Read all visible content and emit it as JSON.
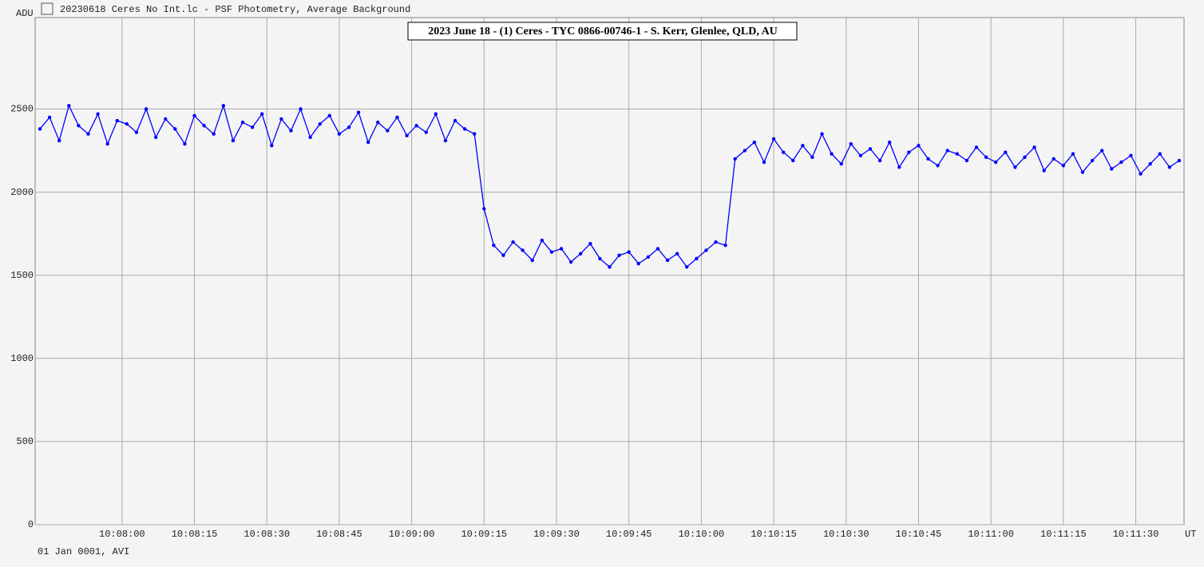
{
  "window_title": "20230618 Ceres No Int.lc - PSF Photometry, Average Background",
  "footer": "01 Jan 0001, AVI",
  "chart_data": {
    "type": "line",
    "title": "2023 June 18 - (1) Ceres - TYC 0866-00746-1 - S. Kerr, Glenlee, QLD, AU",
    "y_label": "ADU",
    "x_label": "UT",
    "grid": true,
    "xlim": [
      "10:07:42",
      "10:11:40"
    ],
    "ylim": [
      0,
      3050
    ],
    "yticks": [
      0,
      500,
      1000,
      1500,
      2000,
      2500
    ],
    "xticks": [
      "10:08:00",
      "10:08:15",
      "10:08:30",
      "10:08:45",
      "10:09:00",
      "10:09:15",
      "10:09:30",
      "10:09:45",
      "10:10:00",
      "10:10:15",
      "10:10:30",
      "10:10:45",
      "10:11:00",
      "10:11:15",
      "10:11:30"
    ],
    "x": [
      "10:07:43",
      "10:07:45",
      "10:07:47",
      "10:07:49",
      "10:07:51",
      "10:07:53",
      "10:07:55",
      "10:07:57",
      "10:07:59",
      "10:08:01",
      "10:08:03",
      "10:08:05",
      "10:08:07",
      "10:08:09",
      "10:08:11",
      "10:08:13",
      "10:08:15",
      "10:08:17",
      "10:08:19",
      "10:08:21",
      "10:08:23",
      "10:08:25",
      "10:08:27",
      "10:08:29",
      "10:08:31",
      "10:08:33",
      "10:08:35",
      "10:08:37",
      "10:08:39",
      "10:08:41",
      "10:08:43",
      "10:08:45",
      "10:08:47",
      "10:08:49",
      "10:08:51",
      "10:08:53",
      "10:08:55",
      "10:08:57",
      "10:08:59",
      "10:09:01",
      "10:09:03",
      "10:09:05",
      "10:09:07",
      "10:09:09",
      "10:09:11",
      "10:09:13",
      "10:09:15",
      "10:09:17",
      "10:09:19",
      "10:09:21",
      "10:09:23",
      "10:09:25",
      "10:09:27",
      "10:09:29",
      "10:09:31",
      "10:09:33",
      "10:09:35",
      "10:09:37",
      "10:09:39",
      "10:09:41",
      "10:09:43",
      "10:09:45",
      "10:09:47",
      "10:09:49",
      "10:09:51",
      "10:09:53",
      "10:09:55",
      "10:09:57",
      "10:09:59",
      "10:10:01",
      "10:10:03",
      "10:10:05",
      "10:10:07",
      "10:10:09",
      "10:10:11",
      "10:10:13",
      "10:10:15",
      "10:10:17",
      "10:10:19",
      "10:10:21",
      "10:10:23",
      "10:10:25",
      "10:10:27",
      "10:10:29",
      "10:10:31",
      "10:10:33",
      "10:10:35",
      "10:10:37",
      "10:10:39",
      "10:10:41",
      "10:10:43",
      "10:10:45",
      "10:10:47",
      "10:10:49",
      "10:10:51",
      "10:10:53",
      "10:10:55",
      "10:10:57",
      "10:10:59",
      "10:11:01",
      "10:11:03",
      "10:11:05",
      "10:11:07",
      "10:11:09",
      "10:11:11",
      "10:11:13",
      "10:11:15",
      "10:11:17",
      "10:11:19",
      "10:11:21",
      "10:11:23",
      "10:11:25",
      "10:11:27",
      "10:11:29",
      "10:11:31",
      "10:11:33",
      "10:11:35",
      "10:11:37",
      "10:11:39"
    ],
    "series": [
      {
        "color": "#0000ff",
        "values": [
          2380,
          2450,
          2310,
          2520,
          2400,
          2350,
          2470,
          2290,
          2430,
          2410,
          2360,
          2500,
          2330,
          2440,
          2380,
          2290,
          2460,
          2400,
          2350,
          2520,
          2310,
          2420,
          2390,
          2470,
          2280,
          2440,
          2370,
          2500,
          2330,
          2410,
          2460,
          2350,
          2390,
          2480,
          2300,
          2420,
          2370,
          2450,
          2340,
          2400,
          2360,
          2470,
          2310,
          2430,
          2380,
          2350,
          1900,
          1680,
          1620,
          1700,
          1650,
          1590,
          1710,
          1640,
          1660,
          1580,
          1630,
          1690,
          1600,
          1550,
          1620,
          1640,
          1570,
          1610,
          1660,
          1590,
          1630,
          1550,
          1600,
          1650,
          1700,
          1680,
          2200,
          2250,
          2300,
          2180,
          2320,
          2240,
          2190,
          2280,
          2210,
          2350,
          2230,
          2170,
          2290,
          2220,
          2260,
          2190,
          2300,
          2150,
          2240,
          2280,
          2200,
          2160,
          2250,
          2230,
          2190,
          2270,
          2210,
          2180,
          2240,
          2150,
          2210,
          2270,
          2130,
          2200,
          2160,
          2230,
          2120,
          2190,
          2250,
          2140,
          2180,
          2220,
          2110,
          2170,
          2230,
          2150,
          2190
        ]
      }
    ]
  }
}
